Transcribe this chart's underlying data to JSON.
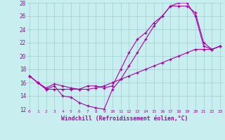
{
  "xlabel": "Windchill (Refroidissement éolien,°C)",
  "bg_color": "#c8eef0",
  "line_color": "#aa00aa",
  "grid_color": "#9dcfcf",
  "xlim": [
    0,
    23
  ],
  "ylim": [
    12,
    28
  ],
  "xticks": [
    0,
    1,
    2,
    3,
    4,
    5,
    6,
    7,
    8,
    9,
    10,
    11,
    12,
    13,
    14,
    15,
    16,
    17,
    18,
    19,
    20,
    21,
    22,
    23
  ],
  "yticks": [
    12,
    14,
    16,
    18,
    20,
    22,
    24,
    26,
    28
  ],
  "lines": [
    {
      "x": [
        0,
        1,
        2,
        3,
        4,
        5,
        6,
        7,
        8,
        9,
        10,
        11,
        12,
        13,
        14,
        15,
        16,
        17,
        18,
        19,
        20,
        21,
        22,
        23
      ],
      "y": [
        17.0,
        16.0,
        15.0,
        15.5,
        14.0,
        13.8,
        13.0,
        12.5,
        12.2,
        12.0,
        15.0,
        16.5,
        18.5,
        20.5,
        22.5,
        24.5,
        26.0,
        27.5,
        28.0,
        28.0,
        26.0,
        21.5,
        21.0,
        21.5
      ]
    },
    {
      "x": [
        0,
        1,
        2,
        3,
        4,
        5,
        6,
        7,
        8,
        9,
        10,
        11,
        12,
        13,
        14,
        15,
        16,
        17,
        18,
        19,
        20,
        21,
        22,
        23
      ],
      "y": [
        17.0,
        16.0,
        15.2,
        15.8,
        15.5,
        15.2,
        15.0,
        15.5,
        15.5,
        15.2,
        15.5,
        18.0,
        20.5,
        22.5,
        23.5,
        25.0,
        26.0,
        27.5,
        27.5,
        27.5,
        26.5,
        22.0,
        21.0,
        21.5
      ]
    },
    {
      "x": [
        0,
        1,
        2,
        3,
        4,
        5,
        6,
        7,
        8,
        9,
        10,
        11,
        12,
        13,
        14,
        15,
        16,
        17,
        18,
        19,
        20,
        21,
        22,
        23
      ],
      "y": [
        17.0,
        16.0,
        15.0,
        15.0,
        15.0,
        15.0,
        15.0,
        15.0,
        15.2,
        15.5,
        16.0,
        16.5,
        17.0,
        17.5,
        18.0,
        18.5,
        19.0,
        19.5,
        20.0,
        20.5,
        21.0,
        21.0,
        21.0,
        21.5
      ]
    }
  ]
}
